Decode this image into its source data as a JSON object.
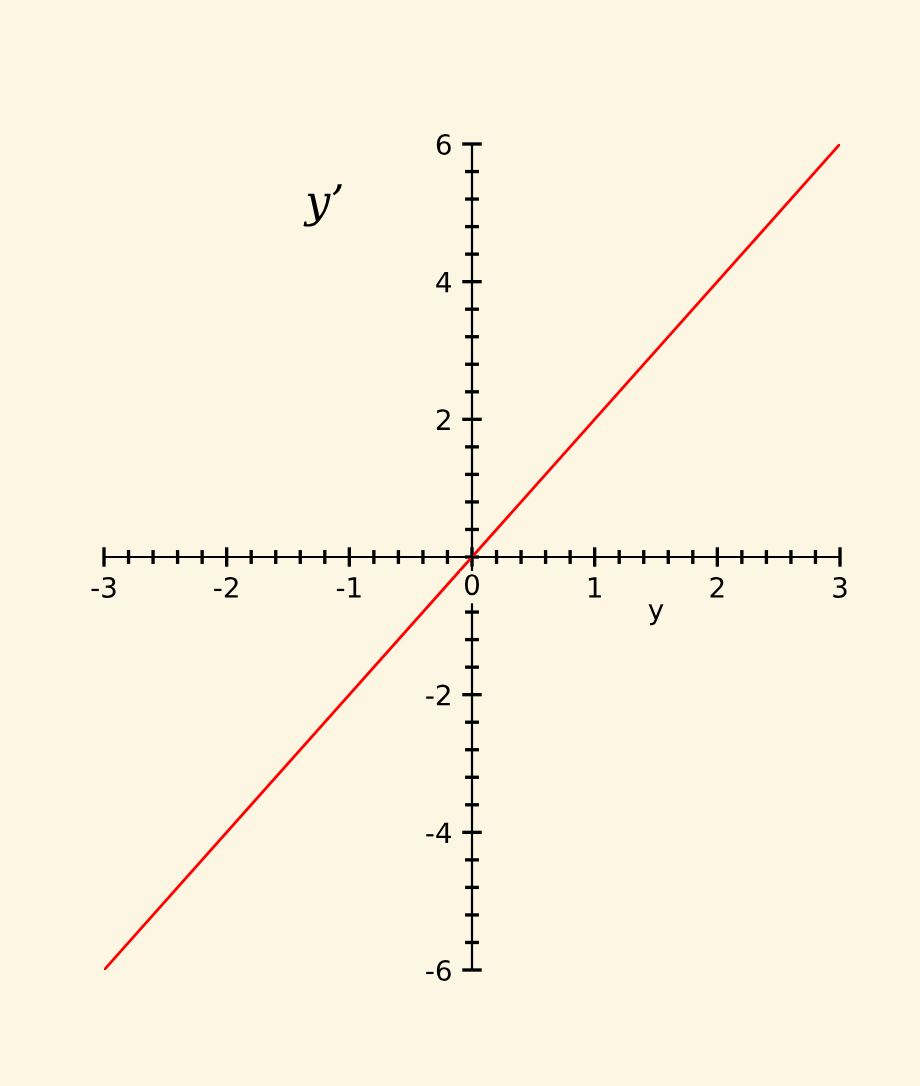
{
  "chart_data": {
    "type": "line",
    "xlabel": "y",
    "ylabel": "y’",
    "x": [
      -3,
      0,
      3
    ],
    "series": [
      {
        "color": "#ff0000",
        "values": [
          -6,
          0,
          6
        ]
      }
    ],
    "xlim": [
      -3,
      3
    ],
    "xticks": [
      -3,
      -2,
      -1,
      0,
      1,
      2,
      3
    ],
    "ylim": [
      -6,
      6
    ],
    "yticks": [
      -6,
      -4,
      -2,
      2,
      4,
      6
    ],
    "grid": false,
    "legend": false,
    "marker": "none",
    "line_style": "solid"
  }
}
